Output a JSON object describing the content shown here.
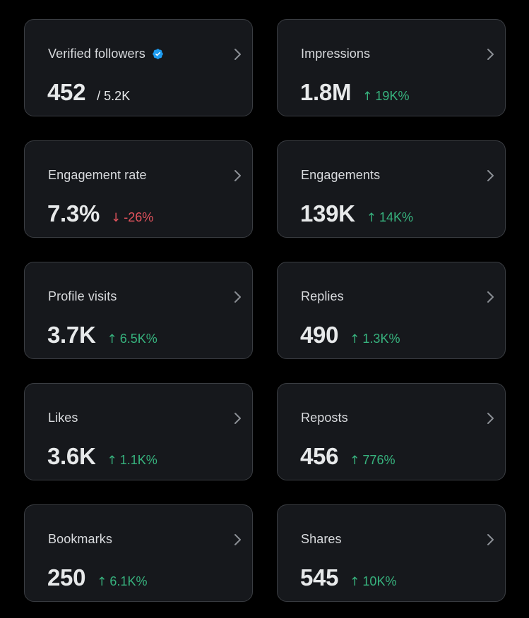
{
  "colors": {
    "background": "#000000",
    "card": "#16181c",
    "card_border": "#3a3d42",
    "positive": "#37b37e",
    "negative": "#e3535d",
    "verified_badge": "#1d9bf0"
  },
  "cards": [
    {
      "label": "Verified followers",
      "value": "452",
      "total": "/ 5.2K",
      "verified": true
    },
    {
      "label": "Impressions",
      "value": "1.8M",
      "delta": "19K%",
      "direction": "up",
      "arrow": "↑"
    },
    {
      "label": "Engagement rate",
      "value": "7.3%",
      "delta": "-26%",
      "direction": "down",
      "arrow": "↓"
    },
    {
      "label": "Engagements",
      "value": "139K",
      "delta": "14K%",
      "direction": "up",
      "arrow": "↑"
    },
    {
      "label": "Profile visits",
      "value": "3.7K",
      "delta": "6.5K%",
      "direction": "up",
      "arrow": "↑"
    },
    {
      "label": "Replies",
      "value": "490",
      "delta": "1.3K%",
      "direction": "up",
      "arrow": "↑"
    },
    {
      "label": "Likes",
      "value": "3.6K",
      "delta": "1.1K%",
      "direction": "up",
      "arrow": "↑"
    },
    {
      "label": "Reposts",
      "value": "456",
      "delta": "776%",
      "direction": "up",
      "arrow": "↑"
    },
    {
      "label": "Bookmarks",
      "value": "250",
      "delta": "6.1K%",
      "direction": "up",
      "arrow": "↑"
    },
    {
      "label": "Shares",
      "value": "545",
      "delta": "10K%",
      "direction": "up",
      "arrow": "↑"
    }
  ]
}
